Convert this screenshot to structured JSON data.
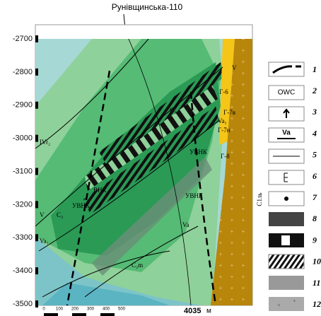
{
  "header": {
    "title": "Рунівщинська-110"
  },
  "depth_axis": {
    "ticks": [
      -2700,
      -2800,
      -2900,
      -3000,
      -3100,
      -3200,
      -3300,
      -3400,
      -3500
    ]
  },
  "labels": [
    "V",
    "Г-6",
    "Г-7в",
    "Va₁",
    "Г-7н",
    "C₃",
    "Г-8",
    "УВНК",
    "IVr₂",
    "ВНК",
    "УВНК",
    "УВНК",
    "V",
    "C₃",
    "Va₁",
    "Va",
    "C₂m"
  ],
  "side_label": "С1ль",
  "scale": {
    "ticks": [
      "0",
      "100",
      "200",
      "300",
      "400",
      "500"
    ],
    "length": "4035",
    "unit": "м"
  },
  "legend": {
    "numbers": [
      "1",
      "2",
      "3",
      "4",
      "5",
      "6",
      "7",
      "8",
      "9",
      "10",
      "11",
      "12"
    ],
    "owc": "OWC",
    "va": "Va"
  }
}
